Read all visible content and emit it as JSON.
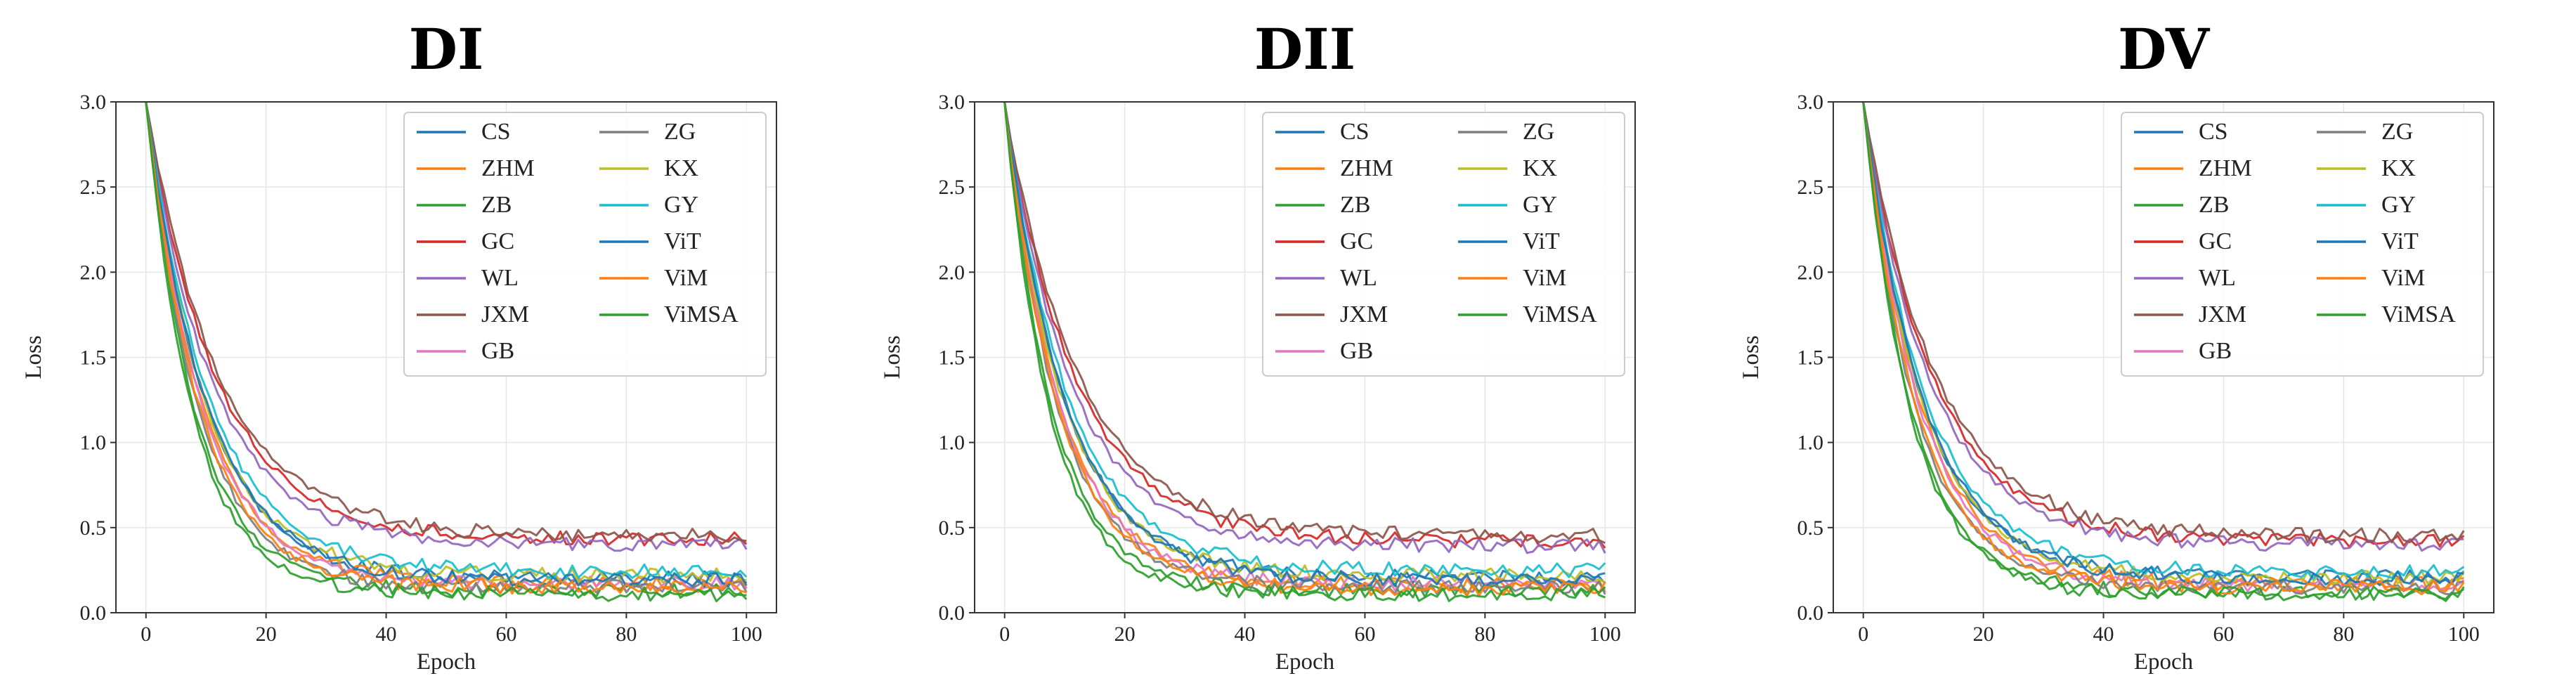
{
  "chart_data": [
    {
      "type": "line",
      "title": "DI",
      "xlabel": "Epoch",
      "ylabel": "Loss",
      "xlim": [
        -5,
        105
      ],
      "ylim": [
        0.0,
        3.0
      ],
      "xticks": [
        "0",
        "20",
        "40",
        "60",
        "80",
        "100"
      ],
      "yticks": [
        "0.0",
        "0.5",
        "1.0",
        "1.5",
        "2.0",
        "2.5",
        "3.0"
      ],
      "grid": true,
      "legend_position": "top-right",
      "series": [
        {
          "name": "CS",
          "color": "#1f77b4",
          "final": 0.2,
          "tau": 10.0
        },
        {
          "name": "ZHM",
          "color": "#ff7f0e",
          "final": 0.17,
          "tau": 9.6
        },
        {
          "name": "ZB",
          "color": "#2ca02c",
          "final": 0.13,
          "tau": 8.2
        },
        {
          "name": "GC",
          "color": "#d62728",
          "final": 0.43,
          "tau": 11.8
        },
        {
          "name": "WL",
          "color": "#9467bd",
          "final": 0.4,
          "tau": 11.0
        },
        {
          "name": "JXM",
          "color": "#8c564b",
          "final": 0.45,
          "tau": 12.3
        },
        {
          "name": "GB",
          "color": "#e377c2",
          "final": 0.17,
          "tau": 9.4
        },
        {
          "name": "ZG",
          "color": "#7f7f7f",
          "final": 0.15,
          "tau": 8.8
        },
        {
          "name": "KX",
          "color": "#bcbd22",
          "final": 0.22,
          "tau": 9.9
        },
        {
          "name": "GY",
          "color": "#17becf",
          "final": 0.24,
          "tau": 10.6
        },
        {
          "name": "ViT",
          "color": "#1f77b4",
          "final": 0.19,
          "tau": 10.2
        },
        {
          "name": "ViM",
          "color": "#ff7f0e",
          "final": 0.15,
          "tau": 9.0
        },
        {
          "name": "ViMSA",
          "color": "#2ca02c",
          "final": 0.11,
          "tau": 7.8
        }
      ]
    },
    {
      "type": "line",
      "title": "DII",
      "xlabel": "Epoch",
      "ylabel": "Loss",
      "xlim": [
        -5,
        105
      ],
      "ylim": [
        0.0,
        3.0
      ],
      "xticks": [
        "0",
        "20",
        "40",
        "60",
        "80",
        "100"
      ],
      "yticks": [
        "0.0",
        "0.5",
        "1.0",
        "1.5",
        "2.0",
        "2.5",
        "3.0"
      ],
      "grid": true,
      "legend_position": "top-right",
      "series": [
        {
          "name": "CS",
          "color": "#1f77b4",
          "final": 0.21,
          "tau": 10.1
        },
        {
          "name": "ZHM",
          "color": "#ff7f0e",
          "final": 0.16,
          "tau": 9.5
        },
        {
          "name": "ZB",
          "color": "#2ca02c",
          "final": 0.13,
          "tau": 8.0
        },
        {
          "name": "GC",
          "color": "#d62728",
          "final": 0.42,
          "tau": 11.9
        },
        {
          "name": "WL",
          "color": "#9467bd",
          "final": 0.39,
          "tau": 11.1
        },
        {
          "name": "JXM",
          "color": "#8c564b",
          "final": 0.45,
          "tau": 12.4
        },
        {
          "name": "GB",
          "color": "#e377c2",
          "final": 0.17,
          "tau": 9.3
        },
        {
          "name": "ZG",
          "color": "#7f7f7f",
          "final": 0.15,
          "tau": 8.9
        },
        {
          "name": "KX",
          "color": "#bcbd22",
          "final": 0.22,
          "tau": 9.8
        },
        {
          "name": "GY",
          "color": "#17becf",
          "final": 0.25,
          "tau": 10.7
        },
        {
          "name": "ViT",
          "color": "#1f77b4",
          "final": 0.19,
          "tau": 10.3
        },
        {
          "name": "ViM",
          "color": "#ff7f0e",
          "final": 0.14,
          "tau": 9.1
        },
        {
          "name": "ViMSA",
          "color": "#2ca02c",
          "final": 0.11,
          "tau": 7.6
        }
      ]
    },
    {
      "type": "line",
      "title": "DV",
      "xlabel": "Epoch",
      "ylabel": "Loss",
      "xlim": [
        -5,
        105
      ],
      "ylim": [
        0.0,
        3.0
      ],
      "xticks": [
        "0",
        "20",
        "40",
        "60",
        "80",
        "100"
      ],
      "yticks": [
        "0.0",
        "0.5",
        "1.0",
        "1.5",
        "2.0",
        "2.5",
        "3.0"
      ],
      "grid": true,
      "legend_position": "top-right",
      "series": [
        {
          "name": "CS",
          "color": "#1f77b4",
          "final": 0.21,
          "tau": 10.0
        },
        {
          "name": "ZHM",
          "color": "#ff7f0e",
          "final": 0.17,
          "tau": 9.7
        },
        {
          "name": "ZB",
          "color": "#2ca02c",
          "final": 0.12,
          "tau": 8.1
        },
        {
          "name": "GC",
          "color": "#d62728",
          "final": 0.42,
          "tau": 11.7
        },
        {
          "name": "WL",
          "color": "#9467bd",
          "final": 0.4,
          "tau": 11.2
        },
        {
          "name": "JXM",
          "color": "#8c564b",
          "final": 0.45,
          "tau": 12.2
        },
        {
          "name": "GB",
          "color": "#e377c2",
          "final": 0.16,
          "tau": 9.5
        },
        {
          "name": "ZG",
          "color": "#7f7f7f",
          "final": 0.15,
          "tau": 8.7
        },
        {
          "name": "KX",
          "color": "#bcbd22",
          "final": 0.21,
          "tau": 9.9
        },
        {
          "name": "GY",
          "color": "#17becf",
          "final": 0.24,
          "tau": 10.5
        },
        {
          "name": "ViT",
          "color": "#1f77b4",
          "final": 0.2,
          "tau": 10.2
        },
        {
          "name": "ViM",
          "color": "#ff7f0e",
          "final": 0.15,
          "tau": 8.9
        },
        {
          "name": "ViMSA",
          "color": "#2ca02c",
          "final": 0.11,
          "tau": 7.9
        }
      ]
    }
  ]
}
